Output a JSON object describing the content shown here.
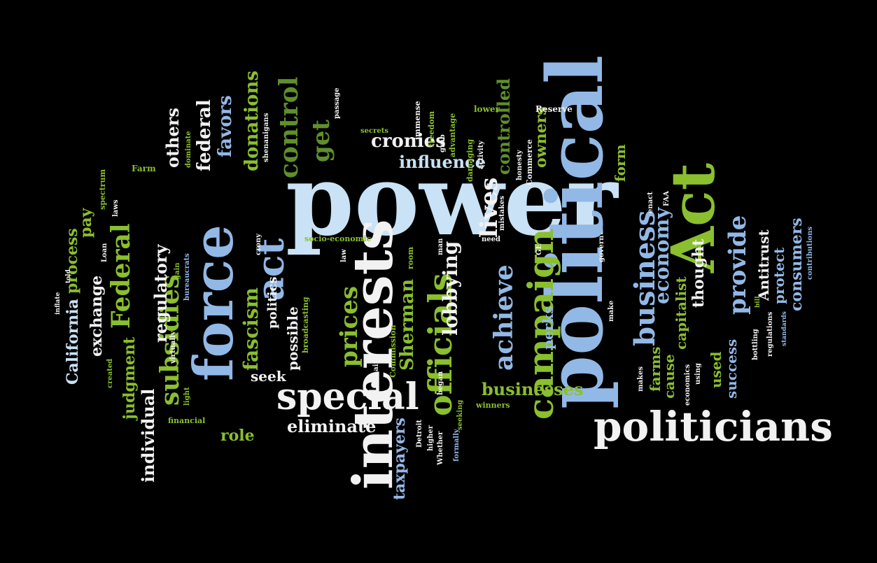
{
  "palette": {
    "background": "#000000",
    "white": "#f2f2f2",
    "pale_blue": "#c9e2f5",
    "light_blue": "#92b8e6",
    "dark_green": "#5f8f2b",
    "green": "#8abf2e",
    "yellow_green": "#b3cf2a",
    "steel_blue": "#7ca3d3"
  },
  "words": [
    {
      "text": "power",
      "color": "pale_blue"
    },
    {
      "text": "political",
      "color": "light_blue"
    },
    {
      "text": "Act",
      "color": "green"
    },
    {
      "text": "politicians",
      "color": "white"
    },
    {
      "text": "interests",
      "color": "white"
    },
    {
      "text": "force",
      "color": "light_blue"
    },
    {
      "text": "special",
      "color": "white"
    },
    {
      "text": "campaign",
      "color": "green"
    },
    {
      "text": "officials",
      "color": "green"
    },
    {
      "text": "act",
      "color": "light_blue"
    },
    {
      "text": "business",
      "color": "light_blue"
    },
    {
      "text": "lives",
      "color": "white"
    },
    {
      "text": "Federal",
      "color": "green"
    },
    {
      "text": "subsidies",
      "color": "green"
    },
    {
      "text": "control",
      "color": "dark_green"
    },
    {
      "text": "provide",
      "color": "light_blue"
    },
    {
      "text": "achieve",
      "color": "light_blue"
    },
    {
      "text": "prices",
      "color": "green"
    },
    {
      "text": "lobbying",
      "color": "white"
    },
    {
      "text": "economy",
      "color": "light_blue"
    },
    {
      "text": "fascism",
      "color": "green"
    },
    {
      "text": "get",
      "color": "dark_green"
    },
    {
      "text": "Sherman",
      "color": "green"
    },
    {
      "text": "consumers",
      "color": "light_blue"
    },
    {
      "text": "Antitrust",
      "color": "white"
    },
    {
      "text": "protect",
      "color": "light_blue"
    },
    {
      "text": "eliminate",
      "color": "white"
    },
    {
      "text": "businesses",
      "color": "green"
    },
    {
      "text": "cronies",
      "color": "white"
    },
    {
      "text": "influence",
      "color": "pale_blue"
    },
    {
      "text": "donations",
      "color": "green"
    },
    {
      "text": "favors",
      "color": "light_blue"
    },
    {
      "text": "federal",
      "color": "white"
    },
    {
      "text": "others",
      "color": "white"
    },
    {
      "text": "controlled",
      "color": "dark_green"
    },
    {
      "text": "owners",
      "color": "green"
    },
    {
      "text": "form",
      "color": "green"
    },
    {
      "text": "regulatory",
      "color": "white"
    },
    {
      "text": "individual",
      "color": "white"
    },
    {
      "text": "judgment",
      "color": "green"
    },
    {
      "text": "exchange",
      "color": "white"
    },
    {
      "text": "process",
      "color": "green"
    },
    {
      "text": "pay",
      "color": "green"
    },
    {
      "text": "California",
      "color": "pale_blue"
    },
    {
      "text": "taxpayers",
      "color": "light_blue"
    },
    {
      "text": "role",
      "color": "green"
    },
    {
      "text": "seek",
      "color": "white"
    },
    {
      "text": "possible",
      "color": "white"
    },
    {
      "text": "politics",
      "color": "white"
    },
    {
      "text": "perks",
      "color": "light_blue"
    },
    {
      "text": "farms",
      "color": "green"
    },
    {
      "text": "cause",
      "color": "green"
    },
    {
      "text": "capitalist",
      "color": "green"
    },
    {
      "text": "thought",
      "color": "white"
    },
    {
      "text": "used",
      "color": "green"
    },
    {
      "text": "success",
      "color": "light_blue"
    },
    {
      "text": "Farm",
      "color": "green"
    },
    {
      "text": "spectrum",
      "color": "green"
    },
    {
      "text": "laws",
      "color": "white"
    },
    {
      "text": "dominate",
      "color": "green"
    },
    {
      "text": "shenanigans",
      "color": "white"
    },
    {
      "text": "secrets",
      "color": "green"
    },
    {
      "text": "passage",
      "color": "white"
    },
    {
      "text": "immense",
      "color": "white"
    },
    {
      "text": "freedom",
      "color": "green"
    },
    {
      "text": "grab",
      "color": "white"
    },
    {
      "text": "advantage",
      "color": "green"
    },
    {
      "text": "lower",
      "color": "green"
    },
    {
      "text": "activity",
      "color": "white"
    },
    {
      "text": "damaging",
      "color": "green"
    },
    {
      "text": "Reserve",
      "color": "white"
    },
    {
      "text": "Commerce",
      "color": "white"
    },
    {
      "text": "honesty",
      "color": "white"
    },
    {
      "text": "mistakes",
      "color": "white"
    },
    {
      "text": "enact",
      "color": "white"
    },
    {
      "text": "FAA",
      "color": "white"
    },
    {
      "text": "socio-economic",
      "color": "green"
    },
    {
      "text": "crony",
      "color": "white"
    },
    {
      "text": "law",
      "color": "white"
    },
    {
      "text": "room",
      "color": "green"
    },
    {
      "text": "man",
      "color": "white"
    },
    {
      "text": "need",
      "color": "white"
    },
    {
      "text": "govern",
      "color": "white"
    },
    {
      "text": "GE",
      "color": "white"
    },
    {
      "text": "make",
      "color": "white"
    },
    {
      "text": "makes",
      "color": "white"
    },
    {
      "text": "using",
      "color": "white"
    },
    {
      "text": "economics",
      "color": "white"
    },
    {
      "text": "bottling",
      "color": "white"
    },
    {
      "text": "bill",
      "color": "green"
    },
    {
      "text": "regulations",
      "color": "white"
    },
    {
      "text": "standards",
      "color": "light_blue"
    },
    {
      "text": "contributions",
      "color": "light_blue"
    },
    {
      "text": "inflate",
      "color": "white"
    },
    {
      "text": "told",
      "color": "white"
    },
    {
      "text": "Loan",
      "color": "white"
    },
    {
      "text": "gain",
      "color": "green"
    },
    {
      "text": "bureaucrats",
      "color": "light_blue"
    },
    {
      "text": "virtually",
      "color": "white"
    },
    {
      "text": "light",
      "color": "green"
    },
    {
      "text": "created",
      "color": "green"
    },
    {
      "text": "financial",
      "color": "green"
    },
    {
      "text": "broadcasting",
      "color": "green"
    },
    {
      "text": "domain",
      "color": "white"
    },
    {
      "text": "Commission",
      "color": "green"
    },
    {
      "text": "seeking",
      "color": "green"
    },
    {
      "text": "began",
      "color": "white"
    },
    {
      "text": "higher",
      "color": "white"
    },
    {
      "text": "Whether",
      "color": "white"
    },
    {
      "text": "Detroit",
      "color": "white"
    },
    {
      "text": "formally",
      "color": "light_blue"
    },
    {
      "text": "winners",
      "color": "green"
    }
  ]
}
